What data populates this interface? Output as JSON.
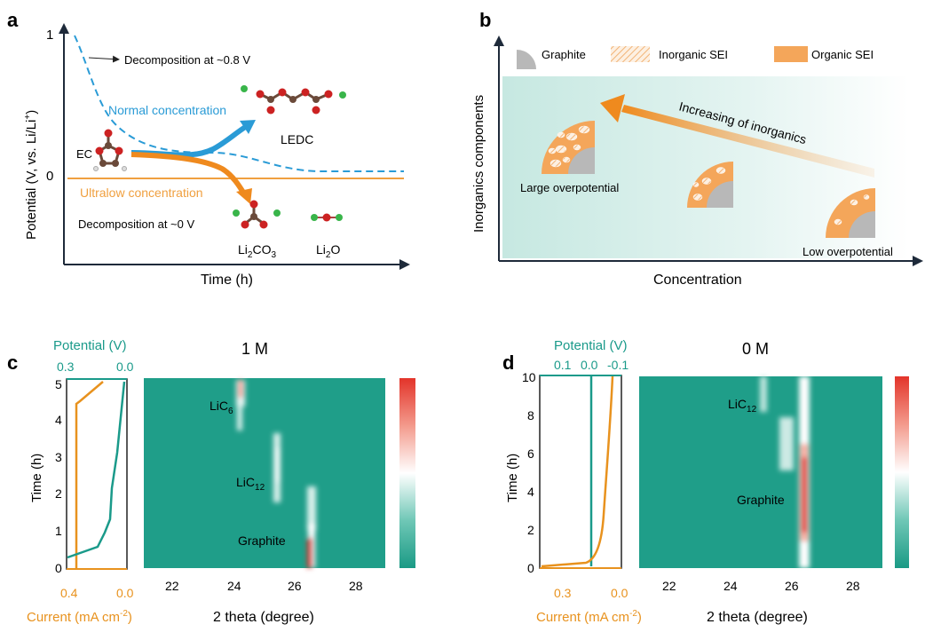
{
  "panel_a": {
    "letter": "a",
    "y_axis_label": "Potential (V, vs. Li/Li",
    "y_axis_label_sup": "+",
    "y_axis_label_end": ")",
    "x_axis_label": "Time (h)",
    "tick_1": "1",
    "tick_0": "0",
    "annotation_top": "Decomposition at ~0.8 V",
    "normal_label": "Normal concentration",
    "ultralow_label": "Ultralow concentration",
    "ec_label": "EC",
    "ledc_label": "LEDC",
    "annotation_bottom": "Decomposition at ~0 V",
    "li2co3_a": "Li",
    "li2co3_sub1": "2",
    "li2co3_b": "CO",
    "li2co3_sub2": "3",
    "li2o_a": "Li",
    "li2o_sub": "2",
    "li2o_b": "O",
    "colors": {
      "normal": "#2a9bd6",
      "ultralow": "#f0a040",
      "orange_arrow": "#ef8a1e"
    }
  },
  "panel_b": {
    "letter": "b",
    "legend_graphite": "Graphite",
    "legend_inorganic": "Inorganic SEI",
    "legend_organic": "Organic SEI",
    "y_axis_label": "Inorganics components",
    "x_axis_label": "Concentration",
    "arrow_label": "Increasing of inorganics",
    "large_label": "Large overpotential",
    "low_label": "Low overpotential",
    "colors": {
      "graphite": "#b8b8b8",
      "organic": "#f4a65a",
      "arrow": "#ef8a1e",
      "bg_left": "#cde9e5"
    }
  },
  "panel_c": {
    "letter": "c",
    "title": "1 M",
    "potential_label": "Potential (V)",
    "potential_ticks": [
      "0.3",
      "0.0"
    ],
    "current_label": "Current (mA cm",
    "current_sup": "-2",
    "current_end": ")",
    "current_ticks": [
      "0.4",
      "0.0"
    ],
    "time_label": "Time (h)",
    "time_ticks": [
      "0",
      "1",
      "2",
      "3",
      "4",
      "5"
    ],
    "xrd_label": "2 theta (degree)",
    "xrd_ticks": [
      "22",
      "24",
      "26",
      "28"
    ],
    "phase_licx": "LiC",
    "phase_licx_sub": "6",
    "phase_lic12": "LiC",
    "phase_lic12_sub": "12",
    "phase_graphite": "Graphite"
  },
  "panel_d": {
    "letter": "d",
    "title": "0 M",
    "potential_label": "Potential (V)",
    "potential_ticks": [
      "0.1",
      "0.0",
      "-0.1"
    ],
    "current_label": "Current (mA cm",
    "current_sup": "-2",
    "current_end": ")",
    "current_ticks": [
      "0.3",
      "0.0"
    ],
    "time_label": "Time (h)",
    "time_ticks": [
      "0",
      "2",
      "4",
      "6",
      "8",
      "10"
    ],
    "xrd_label": "2 theta (degree)",
    "xrd_ticks": [
      "22",
      "24",
      "26",
      "28"
    ],
    "phase_lic12": "LiC",
    "phase_lic12_sub": "12",
    "phase_graphite": "Graphite"
  },
  "colors": {
    "teal": "#1a9a8a",
    "orange": "#e8921e",
    "map_base": "#1f9e89",
    "hot": "#e0302a"
  }
}
